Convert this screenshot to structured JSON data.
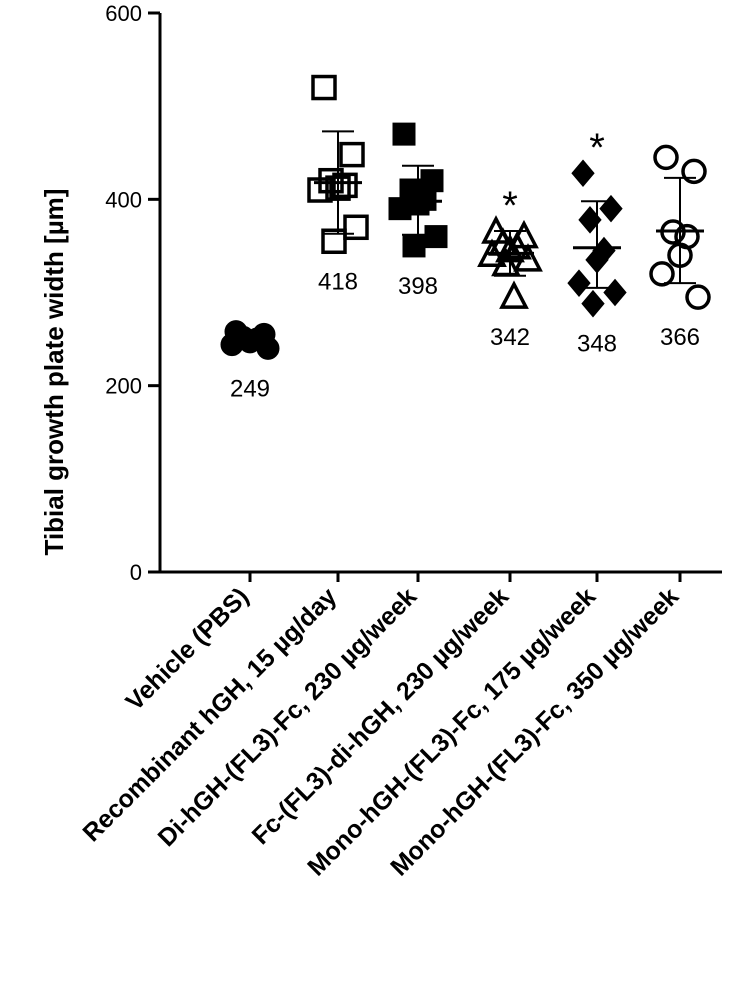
{
  "chart_data": {
    "type": "scatter",
    "ylabel": "Tibial growth plate width [µm]",
    "ylim": [
      0,
      600
    ],
    "yticks": [
      0,
      200,
      400,
      600
    ],
    "grid": false,
    "categories": [
      "Vehicle (PBS)",
      "Recombinant hGH, 15 µg/day",
      "Di-hGH-(FL3)-Fc, 230 µg/week",
      "Fc-(FL3)-di-hGH, 230 µg/week",
      "Mono-hGH-(FL3)-Fc, 175 µg/week",
      "Mono-hGH-(FL3)-Fc, 350 µg/week"
    ],
    "groups": [
      {
        "category": "Vehicle (PBS)",
        "marker": "circle-filled",
        "points": [
          258,
          255,
          252,
          250,
          247,
          244,
          240
        ],
        "mean": 249,
        "sd_low": 242,
        "sd_high": 257,
        "mean_label": "249",
        "significance": ""
      },
      {
        "category": "Recombinant hGH, 15 µg/day",
        "marker": "square-open",
        "points": [
          520,
          448,
          420,
          415,
          412,
          410,
          370,
          355
        ],
        "mean": 418,
        "sd_low": 363,
        "sd_high": 473,
        "mean_label": "418",
        "significance": ""
      },
      {
        "category": "Di-hGH-(FL3)-Fc, 230 µg/week",
        "marker": "square-filled",
        "points": [
          470,
          420,
          410,
          400,
          395,
          390,
          360,
          350
        ],
        "mean": 398,
        "sd_low": 362,
        "sd_high": 436,
        "mean_label": "398",
        "significance": ""
      },
      {
        "category": "Fc-(FL3)-di-hGH, 230 µg/week",
        "marker": "triangle-open",
        "points": [
          365,
          360,
          352,
          348,
          345,
          340,
          335,
          330,
          295
        ],
        "mean": 342,
        "sd_low": 318,
        "sd_high": 366,
        "mean_label": "342",
        "significance": "*"
      },
      {
        "category": "Mono-hGH-(FL3)-Fc, 175 µg/week",
        "marker": "diamond-filled",
        "points": [
          428,
          390,
          378,
          345,
          335,
          310,
          300,
          288
        ],
        "mean": 348,
        "sd_low": 305,
        "sd_high": 398,
        "mean_label": "348",
        "significance": "*"
      },
      {
        "category": "Mono-hGH-(FL3)-Fc, 350 µg/week",
        "marker": "circle-open",
        "points": [
          445,
          430,
          365,
          360,
          340,
          320,
          295
        ],
        "mean": 366,
        "sd_low": 310,
        "sd_high": 423,
        "mean_label": "366",
        "significance": ""
      }
    ]
  }
}
